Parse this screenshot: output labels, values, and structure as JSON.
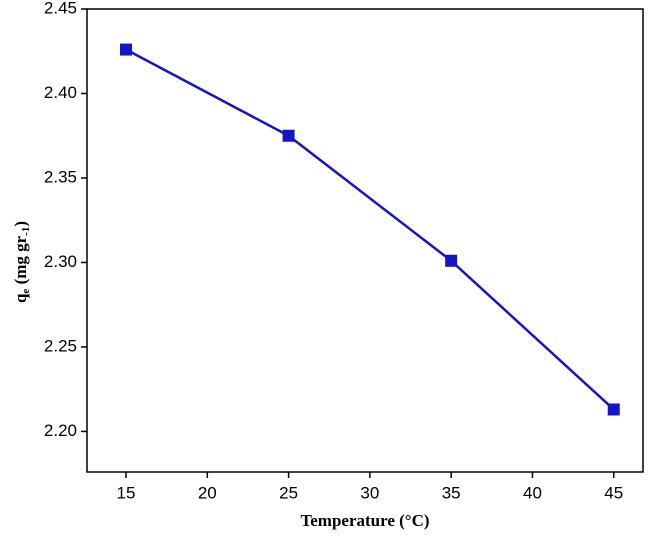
{
  "chart_data": {
    "type": "line",
    "xlabel": "Temperature (°C)",
    "ylabel_parts": [
      "q",
      "e",
      " (mg gr",
      "-1",
      ")"
    ],
    "x": [
      15,
      25,
      35,
      45
    ],
    "series": [
      {
        "color": "#1414c8",
        "values": [
          2.426,
          2.375,
          2.301,
          2.213
        ]
      }
    ],
    "xlim": [
      12.6,
      46.8
    ],
    "ylim": [
      2.176,
      2.45
    ],
    "xticks": [
      15,
      20,
      25,
      30,
      35,
      40,
      45
    ],
    "yticks": [
      {
        "value": 2.2,
        "label": "2.20"
      },
      2.25,
      {
        "value": 2.3,
        "label": "2.30"
      },
      2.35,
      {
        "value": 2.4,
        "label": "2.40"
      },
      2.45
    ],
    "grid": false
  }
}
